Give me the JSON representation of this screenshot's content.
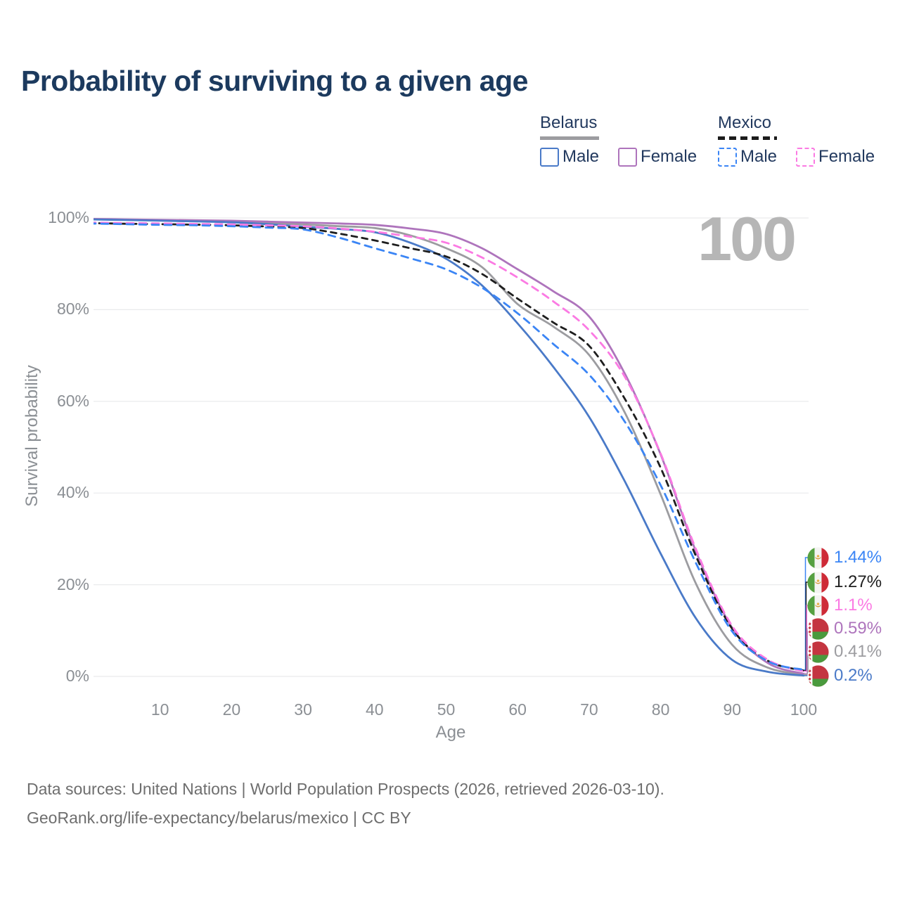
{
  "title": "Probability of surviving to a given age",
  "colors": {
    "title_text": "#1c3a5e",
    "legend_text": "#22395e",
    "axis_text": "#8b8f94",
    "gridline": "#e9eaec",
    "watermark_text": "#b6b6b6",
    "footer_text": "#6e6e6e",
    "belarus_male": "#4a7ac8",
    "belarus_female": "#ae74bc",
    "belarus_total": "#9c9ca0",
    "mexico_male": "#3b85f5",
    "mexico_female": "#fb7ae3",
    "mexico_total": "#1e1e1e"
  },
  "legend": {
    "groups": [
      {
        "label": "Belarus",
        "line_style": "solid",
        "underline_color": "#9c9ca0",
        "items": [
          {
            "label": "Male",
            "color": "#4a7ac8"
          },
          {
            "label": "Female",
            "color": "#ae74bc"
          }
        ]
      },
      {
        "label": "Mexico",
        "line_style": "dashed",
        "underline_color": "#1c1c1c",
        "items": [
          {
            "label": "Male",
            "color": "#3b85f5"
          },
          {
            "label": "Female",
            "color": "#fb7ae3"
          }
        ]
      }
    ]
  },
  "watermark_age": "100",
  "chart_data": {
    "type": "line",
    "title": "Probability of surviving to a given age",
    "xlabel": "Age",
    "ylabel": "Survival probability",
    "xlim": [
      0,
      100
    ],
    "ylim": [
      0,
      100
    ],
    "x_ticks": [
      10,
      20,
      30,
      40,
      50,
      60,
      70,
      80,
      90,
      100
    ],
    "y_ticks": [
      {
        "value": 0,
        "label": "0%"
      },
      {
        "value": 20,
        "label": "20%"
      },
      {
        "value": 40,
        "label": "40%"
      },
      {
        "value": 60,
        "label": "60%"
      },
      {
        "value": 80,
        "label": "80%"
      },
      {
        "value": 100,
        "label": "100%"
      }
    ],
    "grid": "horizontal",
    "legend_position": "top-right",
    "x": [
      0,
      5,
      10,
      15,
      20,
      25,
      30,
      35,
      40,
      45,
      50,
      55,
      60,
      65,
      70,
      75,
      80,
      85,
      90,
      95,
      100
    ],
    "series": [
      {
        "id": "belarus_total",
        "name": "Belarus Total",
        "color": "#9c9ca0",
        "dash": "solid",
        "values": [
          99.75,
          99.6,
          99.5,
          99.35,
          99.2,
          98.95,
          98.6,
          98.2,
          97.8,
          96.2,
          93.4,
          89.3,
          81.2,
          76.3,
          70.1,
          57.5,
          39.7,
          20.0,
          6.9,
          1.9,
          0.41
        ]
      },
      {
        "id": "belarus_female",
        "name": "Belarus Female",
        "color": "#ae74bc",
        "dash": "solid",
        "values": [
          99.8,
          99.7,
          99.6,
          99.5,
          99.4,
          99.2,
          99.0,
          98.8,
          98.5,
          97.7,
          96.5,
          93.4,
          88.8,
          84.0,
          78.5,
          66.0,
          48.4,
          27.0,
          10.6,
          2.9,
          0.59
        ]
      },
      {
        "id": "belarus_male",
        "name": "Belarus Male",
        "color": "#4a7ac8",
        "dash": "solid",
        "values": [
          99.7,
          99.55,
          99.4,
          99.25,
          99.05,
          98.65,
          98.1,
          97.6,
          96.9,
          94.6,
          91.1,
          85.3,
          77.0,
          67.5,
          56.6,
          42.5,
          26.8,
          12.5,
          3.6,
          1.0,
          0.2
        ]
      },
      {
        "id": "mexico_total",
        "name": "Mexico Total",
        "color": "#1e1e1e",
        "dash": "dashed",
        "values": [
          98.9,
          98.75,
          98.65,
          98.55,
          98.4,
          98.15,
          97.8,
          96.6,
          95.1,
          93.4,
          91.6,
          87.8,
          82.4,
          77.2,
          72.1,
          60.5,
          45.5,
          26.0,
          10.4,
          3.4,
          1.27
        ]
      },
      {
        "id": "mexico_female",
        "name": "Mexico Female",
        "color": "#fb7ae3",
        "dash": "dashed",
        "values": [
          99.0,
          98.9,
          98.8,
          98.7,
          98.6,
          98.4,
          98.2,
          97.7,
          97.0,
          95.9,
          94.6,
          91.4,
          87.0,
          81.8,
          75.5,
          65.3,
          48.6,
          27.5,
          11.0,
          3.6,
          1.1
        ]
      },
      {
        "id": "mexico_male",
        "name": "Mexico Male",
        "color": "#3b85f5",
        "dash": "dashed",
        "values": [
          98.8,
          98.65,
          98.5,
          98.4,
          98.2,
          97.9,
          97.5,
          95.7,
          93.4,
          91.2,
          88.8,
          84.8,
          79.2,
          72.5,
          65.8,
          55.5,
          41.7,
          24.5,
          9.8,
          3.3,
          1.44
        ]
      }
    ],
    "end_labels": [
      {
        "value": "1.44%",
        "flag": "mexico",
        "series": "mexico_male",
        "color": "#3b85f5"
      },
      {
        "value": "1.27%",
        "flag": "mexico",
        "series": "mexico_total",
        "color": "#1e1e1e"
      },
      {
        "value": "1.1%",
        "flag": "mexico",
        "series": "mexico_female",
        "color": "#fb7ae3"
      },
      {
        "value": "0.59%",
        "flag": "belarus",
        "series": "belarus_female",
        "color": "#ae74bc"
      },
      {
        "value": "0.41%",
        "flag": "belarus",
        "series": "belarus_total",
        "color": "#9c9ca0"
      },
      {
        "value": "0.2%",
        "flag": "belarus",
        "series": "belarus_male",
        "color": "#4a7ac8"
      }
    ]
  },
  "footer": {
    "line1": "Data sources: United Nations | World Population Prospects (2026, retrieved 2026-03-10).",
    "line2": "GeoRank.org/life-expectancy/belarus/mexico | CC BY"
  }
}
